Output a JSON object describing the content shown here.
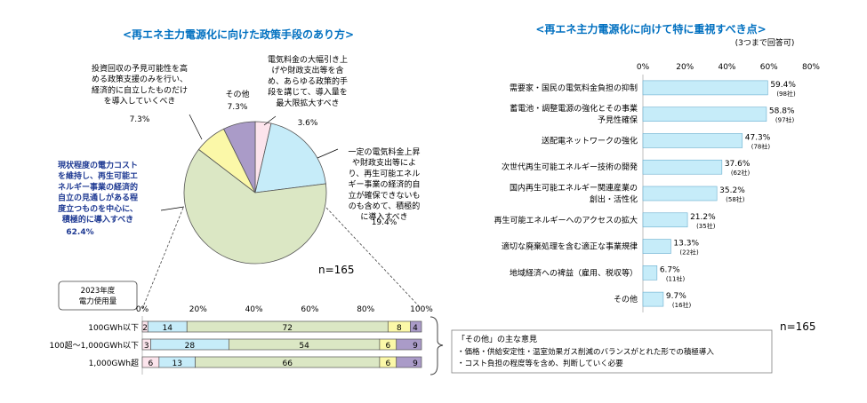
{
  "chart_data": [
    {
      "type": "pie",
      "title": "<再エネ主力電源化に向けた政策手段のあり方>",
      "n_label": "n=165",
      "slices": [
        {
          "label": [
            "電気料金の大幅引き上",
            "げや財政支出等を含",
            "め、あらゆる政策的手",
            "段を講じて、導入量を",
            "最大限拡大すべき"
          ],
          "value": 3.6,
          "value_label": "3.6%",
          "color": "#fce4ec"
        },
        {
          "label": [
            "一定の電気料金上昇",
            "や財政支出等によ",
            "り、再生可能エネル",
            "ギー事業の経済的自",
            "立が確保できないも",
            "のも含めて、積極的",
            "に導入すべき"
          ],
          "value": 19.4,
          "value_label": "19.4%",
          "color": "#c6ecf9"
        },
        {
          "label": [
            "現状程度の電力コスト",
            "を維持し、再生可能エ",
            "ネルギー事業の経済的",
            "自立の見通しがある程",
            "度立つものを中心に、",
            "積極的に導入すべき"
          ],
          "value": 62.4,
          "value_label": "62.4%",
          "color": "#dbe7c4"
        },
        {
          "label": [
            "投資回収の予見可能性を高",
            "める政策支援のみを行い、",
            "経済的に自立したものだけ",
            "を導入していくべき"
          ],
          "value": 7.3,
          "value_label": "7.3%",
          "color": "#fbf8a8"
        },
        {
          "label": [
            "その他"
          ],
          "value": 7.3,
          "value_label": "7.3%",
          "color": "#aa9bc8"
        }
      ]
    },
    {
      "type": "bar",
      "orientation": "horizontal-stacked",
      "group_title": [
        "2023年度",
        "電力使用量"
      ],
      "xlim": [
        0,
        100
      ],
      "ticks": [
        "0%",
        "20%",
        "40%",
        "60%",
        "80%",
        "100%"
      ],
      "categories": [
        "100GWh以下",
        "100超～1,000GWh以下",
        "1,000GWh超"
      ],
      "series": [
        {
          "values": [
            2,
            3,
            6
          ],
          "labels": [
            "2",
            "3",
            "6"
          ],
          "color": "#fce4ec"
        },
        {
          "values": [
            14,
            28,
            13
          ],
          "labels": [
            "14",
            "28",
            "13"
          ],
          "color": "#c6ecf9"
        },
        {
          "values": [
            72,
            54,
            66
          ],
          "labels": [
            "72",
            "54",
            "66"
          ],
          "color": "#dbe7c4"
        },
        {
          "values": [
            8,
            6,
            6
          ],
          "labels": [
            "8",
            "6",
            "6"
          ],
          "color": "#fbf8a8"
        },
        {
          "values": [
            4,
            9,
            9
          ],
          "labels": [
            "4",
            "9",
            "9"
          ],
          "color": "#aa9bc8"
        }
      ]
    },
    {
      "type": "bar",
      "orientation": "horizontal",
      "title": "<再エネ主力電源化に向けて特に重視すべき点>",
      "subtitle": "(3つまで回答可)",
      "n_label": "n=165",
      "xlim": [
        0,
        80
      ],
      "ticks": [
        "0%",
        "20%",
        "40%",
        "60%",
        "80%"
      ],
      "bar_color": "#c6ecf9",
      "categories": [
        [
          "需要家・国民の電気料金負担の抑制"
        ],
        [
          "蓄電池・調整電源の強化とその事業",
          "予見性確保"
        ],
        [
          "送配電ネットワークの強化"
        ],
        [
          "次世代再生可能エネルギー技術の開発"
        ],
        [
          "国内再生可能エネルギー関連産業の",
          "創出・活性化"
        ],
        [
          "再生可能エネルギーへのアクセスの拡大"
        ],
        [
          "適切な廃棄処理を含む適正な事業規律"
        ],
        [
          "地域経済への裨益（雇用、税収等）"
        ],
        [
          "その他"
        ]
      ],
      "values": [
        59.4,
        58.8,
        47.3,
        37.6,
        35.2,
        21.2,
        13.3,
        6.7,
        9.7
      ],
      "value_labels": [
        "59.4%",
        "58.8%",
        "47.3%",
        "37.6%",
        "35.2%",
        "21.2%",
        "13.3%",
        "6.7%",
        "9.7%"
      ],
      "count_labels": [
        "(98社)",
        "(97社)",
        "(78社)",
        "(62社)",
        "(58社)",
        "(35社)",
        "(22社)",
        "(11社)",
        "(16社)"
      ]
    }
  ],
  "notes": {
    "heading": "「その他」の主な意見",
    "lines": [
      "・価格・供給安定性・温室効果ガス削減のバランスがとれた形での積極導入",
      "・コスト負担の程度等を含め、判断していく必要"
    ]
  },
  "colors": {
    "title": "#0070c0",
    "emphasis": "#1f3a93",
    "border": "#7f7f7f",
    "axis": "#bfbfbf"
  }
}
